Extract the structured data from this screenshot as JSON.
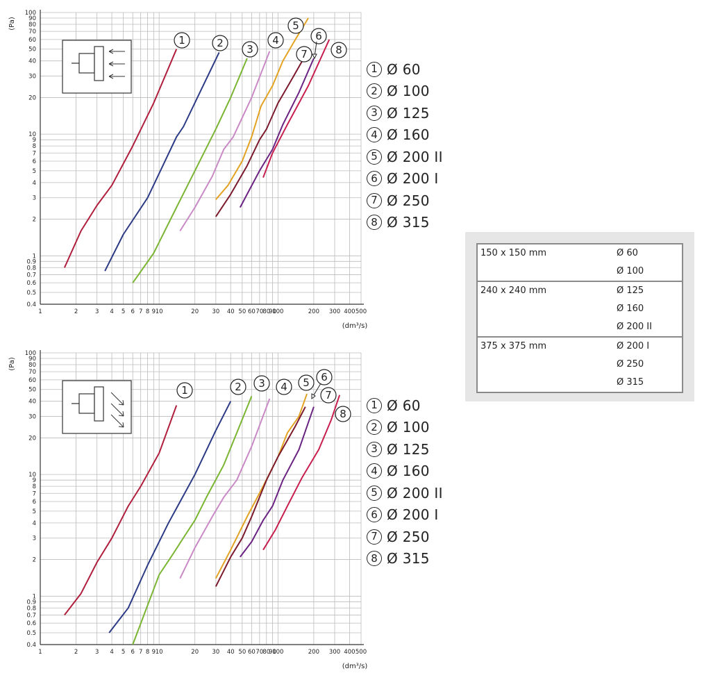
{
  "colors": {
    "grid": "#bbbbbb",
    "axis": "#333333",
    "ink": "#222222"
  },
  "chart_data": [
    {
      "type": "line",
      "xscale": "log",
      "yscale": "log",
      "xlabel": "(dm³/s)",
      "ylabel": "(Pa)",
      "xlim": [
        1,
        500
      ],
      "ylim": [
        0.4,
        100
      ],
      "x_ticks": [
        "1",
        "2",
        "3",
        "4",
        "5",
        "6",
        "7",
        "8",
        "9",
        "10",
        "20",
        "30",
        "40",
        "50",
        "60",
        "70",
        "80",
        "90",
        "100",
        "200",
        "300",
        "400",
        "500"
      ],
      "y_ticks": [
        "0.4",
        "0.5",
        "0.6",
        "0.7",
        "0.8",
        "0.9",
        "1",
        "2",
        "3",
        "4",
        "5",
        "6",
        "7",
        "8",
        "9",
        "10",
        "20",
        "30",
        "40",
        "50",
        "60",
        "70",
        "80",
        "90",
        "100"
      ],
      "icon": "grille-straight-flow-icon",
      "series": [
        {
          "marker": "1",
          "color": "#b01e3c",
          "points": [
            [
              1.6,
              0.8
            ],
            [
              2.2,
              1.6
            ],
            [
              3,
              2.6
            ],
            [
              4,
              3.8
            ],
            [
              6,
              8
            ],
            [
              9,
              18
            ],
            [
              14,
              50
            ]
          ]
        },
        {
          "marker": "2",
          "color": "#2b3a85",
          "points": [
            [
              3.5,
              0.75
            ],
            [
              5,
              1.5
            ],
            [
              8,
              3
            ],
            [
              14,
              9.5
            ],
            [
              16,
              11.5
            ],
            [
              32,
              47
            ]
          ]
        },
        {
          "marker": "3",
          "color": "#7ab532",
          "points": [
            [
              6,
              0.6
            ],
            [
              9,
              1.05
            ],
            [
              14,
              2.5
            ],
            [
              20,
              5
            ],
            [
              30,
              11
            ],
            [
              40,
              20
            ],
            [
              55,
              42
            ]
          ]
        },
        {
          "marker": "4",
          "color": "#c989c6",
          "points": [
            [
              15,
              1.6
            ],
            [
              20,
              2.5
            ],
            [
              28,
              4.5
            ],
            [
              35,
              7.5
            ],
            [
              42,
              9.5
            ],
            [
              60,
              20
            ],
            [
              85,
              48
            ]
          ]
        },
        {
          "marker": "5",
          "color": "#e3a222",
          "points": [
            [
              30,
              2.9
            ],
            [
              38,
              3.8
            ],
            [
              50,
              6
            ],
            [
              60,
              9.5
            ],
            [
              72,
              17
            ],
            [
              90,
              25
            ],
            [
              110,
              40
            ],
            [
              140,
              60
            ],
            [
              180,
              90
            ]
          ]
        },
        {
          "marker": "6",
          "color": "#7b1a2c",
          "points": [
            [
              30,
              2.1
            ],
            [
              40,
              3.2
            ],
            [
              55,
              5.5
            ],
            [
              70,
              9
            ],
            [
              80,
              11
            ],
            [
              100,
              18
            ],
            [
              130,
              28
            ],
            [
              160,
              40
            ]
          ]
        },
        {
          "marker": "7",
          "color": "#6a2382",
          "points": [
            [
              48,
              2.5
            ],
            [
              70,
              5
            ],
            [
              90,
              7.5
            ],
            [
              110,
              12
            ],
            [
              150,
              22
            ],
            [
              200,
              42
            ]
          ]
        },
        {
          "marker": "8",
          "color": "#c81e4e",
          "points": [
            [
              75,
              4.4
            ],
            [
              90,
              7
            ],
            [
              120,
              12
            ],
            [
              180,
              25
            ],
            [
              270,
              60
            ]
          ]
        }
      ],
      "legend": [
        {
          "marker": "1",
          "label": "Ø 60"
        },
        {
          "marker": "2",
          "label": "Ø 100"
        },
        {
          "marker": "3",
          "label": "Ø 125"
        },
        {
          "marker": "4",
          "label": "Ø 160"
        },
        {
          "marker": "5",
          "label": "Ø 200 II"
        },
        {
          "marker": "6",
          "label": "Ø 200 I"
        },
        {
          "marker": "7",
          "label": "Ø 250"
        },
        {
          "marker": "8",
          "label": "Ø 315"
        }
      ]
    },
    {
      "type": "line",
      "xscale": "log",
      "yscale": "log",
      "xlabel": "(dm³/s)",
      "ylabel": "(Pa)",
      "xlim": [
        1,
        500
      ],
      "ylim": [
        0.4,
        100
      ],
      "x_ticks": [
        "1",
        "2",
        "3",
        "4",
        "5",
        "6",
        "7",
        "8",
        "9",
        "10",
        "20",
        "30",
        "40",
        "50",
        "60",
        "70",
        "80",
        "90",
        "100",
        "200",
        "300",
        "400",
        "500"
      ],
      "y_ticks": [
        "0.4",
        "0.5",
        "0.6",
        "0.7",
        "0.8",
        "0.9",
        "1",
        "2",
        "3",
        "4",
        "5",
        "6",
        "7",
        "8",
        "9",
        "10",
        "20",
        "30",
        "40",
        "50",
        "60",
        "70",
        "80",
        "90",
        "100"
      ],
      "icon": "grille-angled-flow-icon",
      "series": [
        {
          "marker": "1",
          "color": "#b01e3c",
          "points": [
            [
              1.6,
              0.7
            ],
            [
              2.2,
              1.05
            ],
            [
              3,
              1.9
            ],
            [
              4,
              3
            ],
            [
              5.5,
              5.5
            ],
            [
              7,
              8
            ],
            [
              10,
              15
            ],
            [
              14,
              37
            ]
          ]
        },
        {
          "marker": "2",
          "color": "#2b3a85",
          "points": [
            [
              3.8,
              0.5
            ],
            [
              5.5,
              0.8
            ],
            [
              8,
              1.8
            ],
            [
              12,
              4
            ],
            [
              20,
              10
            ],
            [
              30,
              23
            ],
            [
              40,
              40
            ]
          ]
        },
        {
          "marker": "3",
          "color": "#7ab532",
          "points": [
            [
              6,
              0.4
            ],
            [
              10,
              1.5
            ],
            [
              13,
              2.2
            ],
            [
              17,
              3.3
            ],
            [
              20,
              4.2
            ],
            [
              25,
              6.5
            ],
            [
              35,
              12
            ],
            [
              45,
              22
            ],
            [
              60,
              44
            ]
          ]
        },
        {
          "marker": "4",
          "color": "#c989c6",
          "points": [
            [
              15,
              1.4
            ],
            [
              20,
              2.5
            ],
            [
              28,
              4.5
            ],
            [
              35,
              6.5
            ],
            [
              45,
              9
            ],
            [
              60,
              17
            ],
            [
              85,
              42
            ]
          ]
        },
        {
          "marker": "5",
          "color": "#e3a222",
          "points": [
            [
              30,
              1.4
            ],
            [
              40,
              2.4
            ],
            [
              55,
              4.5
            ],
            [
              75,
              8
            ],
            [
              100,
              14
            ],
            [
              120,
              22
            ],
            [
              150,
              30
            ],
            [
              175,
              46
            ]
          ]
        },
        {
          "marker": "6",
          "color": "#7b1a2c",
          "points": [
            [
              30,
              1.2
            ],
            [
              40,
              2.1
            ],
            [
              50,
              3
            ],
            [
              60,
              4.5
            ],
            [
              80,
              9
            ],
            [
              100,
              14
            ],
            [
              140,
              25
            ],
            [
              170,
              36
            ]
          ]
        },
        {
          "marker": "7",
          "color": "#6a2382",
          "points": [
            [
              48,
              2.1
            ],
            [
              60,
              2.8
            ],
            [
              75,
              4.2
            ],
            [
              90,
              5.5
            ],
            [
              110,
              9
            ],
            [
              150,
              16
            ],
            [
              200,
              36
            ]
          ]
        },
        {
          "marker": "8",
          "color": "#c81e4e",
          "points": [
            [
              75,
              2.4
            ],
            [
              95,
              3.5
            ],
            [
              120,
              5.5
            ],
            [
              160,
              9.5
            ],
            [
              220,
              16
            ],
            [
              280,
              28
            ],
            [
              330,
              45
            ]
          ]
        }
      ],
      "legend": [
        {
          "marker": "1",
          "label": "Ø 60"
        },
        {
          "marker": "2",
          "label": "Ø 100"
        },
        {
          "marker": "3",
          "label": "Ø 125"
        },
        {
          "marker": "4",
          "label": "Ø 160"
        },
        {
          "marker": "5",
          "label": "Ø 200 II"
        },
        {
          "marker": "6",
          "label": "Ø 200 I"
        },
        {
          "marker": "7",
          "label": "Ø 250"
        },
        {
          "marker": "8",
          "label": "Ø 315"
        }
      ]
    }
  ],
  "size_table": [
    {
      "size": "150 x 150 mm",
      "diameters": [
        "Ø 60",
        "Ø 100"
      ]
    },
    {
      "size": "240 x 240 mm",
      "diameters": [
        "Ø 125",
        "Ø 160",
        "Ø 200 II"
      ]
    },
    {
      "size": "375 x 375 mm",
      "diameters": [
        "Ø 200 I",
        "Ø 250",
        "Ø 315"
      ]
    }
  ]
}
